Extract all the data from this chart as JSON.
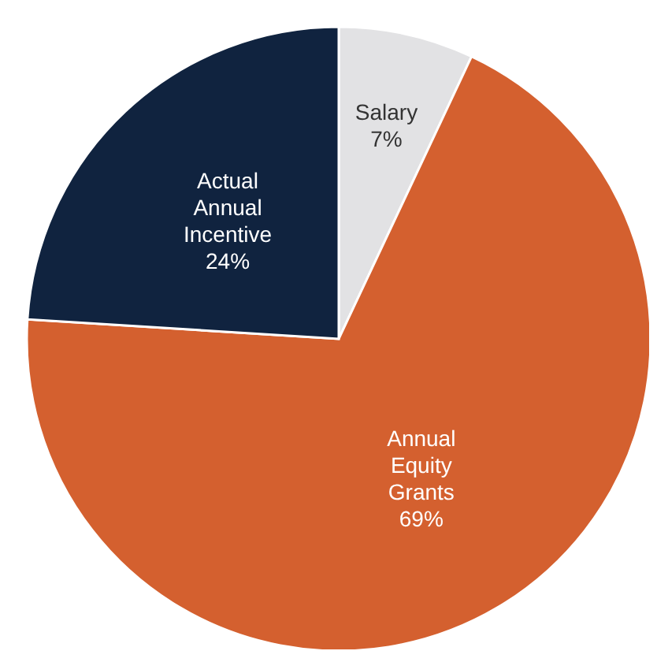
{
  "chart_data": {
    "type": "pie",
    "categories": [
      "Salary",
      "Annual Equity Grants",
      "Actual Annual Incentive"
    ],
    "values": [
      7,
      69,
      24
    ],
    "colors": [
      "#e2e2e4",
      "#d4602f",
      "#10233f"
    ],
    "value_labels": [
      "7%",
      "69%",
      "24%"
    ]
  }
}
